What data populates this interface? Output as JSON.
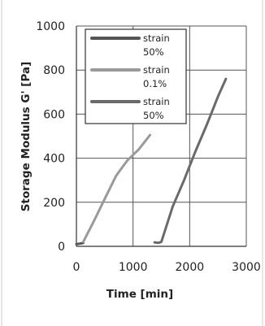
{
  "chart_data": {
    "type": "line",
    "title": "",
    "xlabel": "Time [min]",
    "ylabel": "Storage Modulus G' [Pa]",
    "xlim": [
      0,
      3000
    ],
    "ylim": [
      0,
      1000
    ],
    "xticks": [
      0,
      1000,
      2000,
      3000
    ],
    "yticks": [
      0,
      200,
      400,
      600,
      800,
      1000
    ],
    "xtick_labels": [
      "0",
      "1000",
      "2000",
      "3000"
    ],
    "ytick_labels": [
      "0",
      "200",
      "400",
      "600",
      "800",
      "1000"
    ],
    "grid": true,
    "legend_position": "top-left inside plot",
    "series": [
      {
        "name": "strain 50%",
        "legend_lines": [
          "strain",
          "50%"
        ],
        "color": "#555555",
        "points": [
          [
            0,
            10
          ],
          [
            60,
            12
          ],
          [
            120,
            15
          ]
        ]
      },
      {
        "name": "strain 0.1%",
        "legend_lines": [
          "strain",
          "0.1%"
        ],
        "color": "#9a9a9a",
        "points": [
          [
            120,
            20
          ],
          [
            300,
            110
          ],
          [
            500,
            215
          ],
          [
            700,
            320
          ],
          [
            900,
            390
          ],
          [
            1100,
            440
          ],
          [
            1300,
            505
          ]
        ]
      },
      {
        "name": "strain 50%",
        "legend_lines": [
          "strain",
          "50%"
        ],
        "color": "#6a6a6a",
        "points": [
          [
            1380,
            18
          ],
          [
            1450,
            16
          ],
          [
            1500,
            20
          ],
          [
            1700,
            180
          ],
          [
            1900,
            300
          ],
          [
            2100,
            430
          ],
          [
            2300,
            550
          ],
          [
            2500,
            680
          ],
          [
            2640,
            760
          ]
        ]
      }
    ]
  }
}
